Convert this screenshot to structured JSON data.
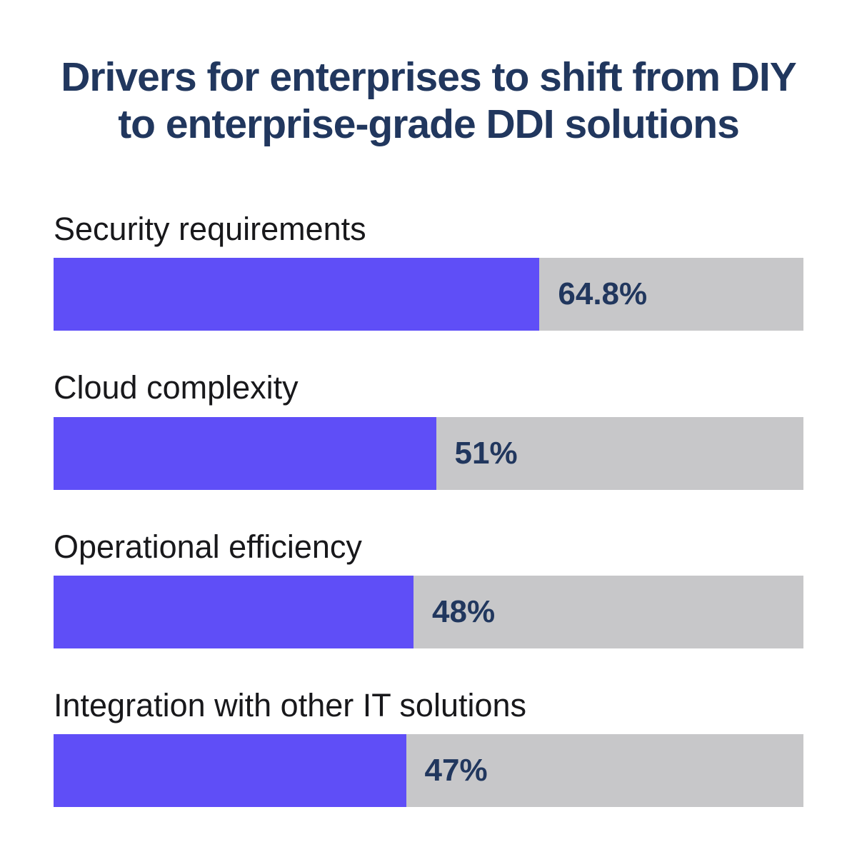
{
  "colors": {
    "background": "#ffffff",
    "title": "#21375e",
    "category_label": "#18181b",
    "value_label": "#21375e",
    "bar_fill": "#5f4ef7",
    "bar_track": "#c7c7c9"
  },
  "title": {
    "full": "Drivers for enterprises to shift from DIY to enterprise-grade DDI solutions",
    "line1": "Drivers for enterprises to shift from DIY",
    "line2": "to enterprise-grade DDI solutions"
  },
  "chart_data": {
    "type": "bar",
    "orientation": "horizontal",
    "title": "Drivers for enterprises to shift from DIY to enterprise-grade DDI solutions",
    "categories": [
      "Security requirements",
      "Cloud complexity",
      "Operational efficiency",
      "Integration with other IT solutions"
    ],
    "values": [
      64.8,
      51,
      48,
      47
    ],
    "value_labels": [
      "64.8%",
      "51%",
      "48%",
      "47%"
    ],
    "xlim": [
      0,
      100
    ],
    "grid": false,
    "legend": false,
    "value_label_position": "right-of-fill",
    "bar_fill_color": "#5f4ef7",
    "bar_track_color": "#c7c7c9"
  }
}
